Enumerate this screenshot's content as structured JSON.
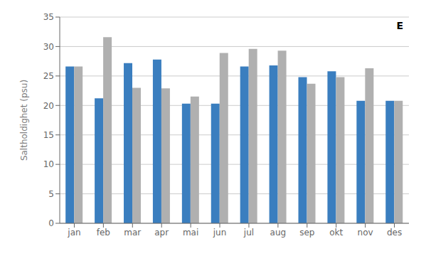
{
  "chart_data": {
    "type": "bar",
    "categories": [
      "jan",
      "feb",
      "mar",
      "apr",
      "mai",
      "jun",
      "jul",
      "aug",
      "sep",
      "okt",
      "nov",
      "des"
    ],
    "series": [
      {
        "color": "#3a7ebf",
        "values": [
          26.6,
          21.2,
          27.2,
          27.8,
          20.3,
          20.3,
          26.6,
          26.8,
          24.8,
          25.8,
          20.8,
          20.8
        ]
      },
      {
        "color": "#b0b0b0",
        "values": [
          26.6,
          31.6,
          23.0,
          22.9,
          21.5,
          28.9,
          29.6,
          29.3,
          23.7,
          24.8,
          26.3,
          20.8
        ]
      }
    ],
    "ylabel": "Saltholdighet (psu)",
    "ylim": [
      0,
      35
    ],
    "yticks": [
      0,
      5,
      10,
      15,
      20,
      25,
      30,
      35
    ],
    "grid": true,
    "annotations": [
      "E"
    ]
  }
}
